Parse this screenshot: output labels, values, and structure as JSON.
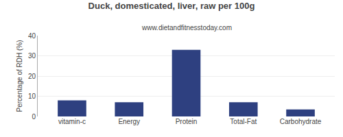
{
  "chart_data": {
    "type": "bar",
    "title": "Duck, domesticated, liver, raw per 100g",
    "subtitle": "www.dietandfitnesstoday.com",
    "categories": [
      "vitamin-c",
      "Energy",
      "Protein",
      "Total-Fat",
      "Carbohydrate"
    ],
    "values": [
      8.0,
      7.0,
      33.0,
      7.0,
      3.5
    ],
    "color": "#2e4080",
    "ylabel": "Percentage of RDH (%)",
    "ylim": [
      0,
      40
    ],
    "yticks": [
      0,
      10,
      20,
      30,
      40
    ],
    "grid": true
  }
}
